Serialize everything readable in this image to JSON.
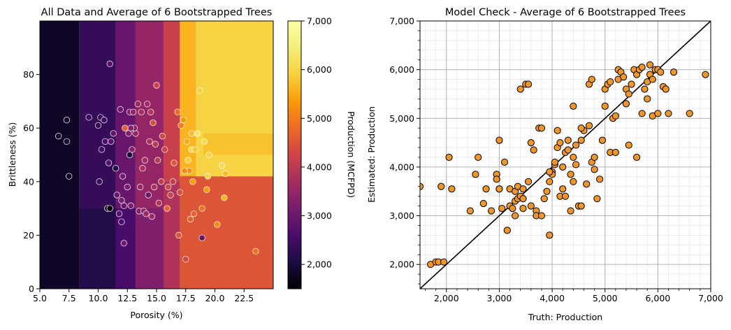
{
  "chart_data": [
    {
      "type": "heatmap",
      "title": "All Data and Average of 6 Bootstrapped Trees",
      "xlabel": "Porosity (%)",
      "ylabel": "Brittleness (%)",
      "xlim": [
        5.0,
        25.0
      ],
      "ylim": [
        0,
        100
      ],
      "xticks": [
        5.0,
        7.5,
        10.0,
        12.5,
        15.0,
        17.5,
        20.0,
        22.5
      ],
      "xtick_labels": [
        "5.0",
        "7.5",
        "10.0",
        "12.5",
        "15.0",
        "17.5",
        "20.0",
        "22.5"
      ],
      "yticks": [
        0,
        20,
        40,
        60,
        80
      ],
      "ytick_labels": [
        "0",
        "20",
        "40",
        "60",
        "80"
      ],
      "colorbar": {
        "label": "Production (MCFPD)",
        "colormap": "inferno",
        "range": [
          1500,
          7000
        ],
        "ticks": [
          2000,
          3000,
          4000,
          5000,
          6000,
          7000
        ],
        "tick_labels": [
          "2,000",
          "3,000",
          "4,000",
          "5,000",
          "6,000",
          "7,000"
        ]
      },
      "model_regions": [
        {
          "x": [
            5.0,
            8.4
          ],
          "y": [
            0,
            100
          ],
          "value": 1800
        },
        {
          "x": [
            8.4,
            11.5
          ],
          "y": [
            0,
            100
          ],
          "value": 2350
        },
        {
          "x": [
            8.4,
            11.5
          ],
          "y": [
            0,
            30
          ],
          "value": 2150
        },
        {
          "x": [
            11.5,
            13.2
          ],
          "y": [
            0,
            100
          ],
          "value": 2950
        },
        {
          "x": [
            11.5,
            13.2
          ],
          "y": [
            0,
            30
          ],
          "value": 2600
        },
        {
          "x": [
            13.2,
            15.6
          ],
          "y": [
            0,
            100
          ],
          "value": 3500
        },
        {
          "x": [
            13.2,
            15.6
          ],
          "y": [
            0,
            30
          ],
          "value": 3250
        },
        {
          "x": [
            15.6,
            17.0
          ],
          "y": [
            0,
            100
          ],
          "value": 4150
        },
        {
          "x": [
            15.6,
            17.0
          ],
          "y": [
            0,
            40
          ],
          "value": 3850
        },
        {
          "x": [
            17.0,
            18.4
          ],
          "y": [
            0,
            100
          ],
          "value": 5600
        },
        {
          "x": [
            17.0,
            25.0
          ],
          "y": [
            0,
            42
          ],
          "value": 4500
        },
        {
          "x": [
            18.4,
            25.0
          ],
          "y": [
            42,
            100
          ],
          "value": 5950
        },
        {
          "x": [
            19.0,
            25.0
          ],
          "y": [
            50,
            58
          ],
          "value": 5750
        }
      ],
      "scatter": {
        "x": [
          6.6,
          7.3,
          7.3,
          7.5,
          9.2,
          10.0,
          10.2,
          10.1,
          10.3,
          10.5,
          10.6,
          10.9,
          11.0,
          11.1,
          11.3,
          11.6,
          11.8,
          11.9,
          12.0,
          12.1,
          12.2,
          12.5,
          12.6,
          12.7,
          12.8,
          12.9,
          13.0,
          13.2,
          13.4,
          13.5,
          13.6,
          13.7,
          13.9,
          14.0,
          14.2,
          14.4,
          14.5,
          14.6,
          14.8,
          14.9,
          15.0,
          15.2,
          15.4,
          15.5,
          15.7,
          16.0,
          16.2,
          16.5,
          16.8,
          17.0,
          17.1,
          17.3,
          17.5,
          17.6,
          17.8,
          17.9,
          18.0,
          18.2,
          18.5,
          18.7,
          18.9,
          19.1,
          19.3,
          19.5,
          20.2,
          20.6,
          20.8,
          12.0,
          12.3,
          13.8,
          14.7,
          15.1,
          16.9,
          17.7,
          18.0,
          18.3,
          11.5,
          12.7,
          14.3,
          15.9,
          10.8,
          13.1,
          14.1,
          16.4,
          17.4,
          18.1,
          19.4,
          20.9,
          11.0,
          12.2,
          12.8,
          18.9,
          23.5
        ],
        "y": [
          57,
          55,
          63,
          42,
          64,
          61,
          64,
          40,
          52,
          63,
          55,
          47,
          84,
          55,
          58,
          35,
          28,
          67,
          33,
          42,
          31,
          38,
          58,
          66,
          31,
          52,
          66,
          58,
          69,
          29,
          38,
          66,
          29,
          48,
          69,
          55,
          66,
          27,
          38,
          54,
          76,
          32,
          40,
          57,
          52,
          38,
          35,
          47,
          66,
          36,
          61,
          63,
          11,
          55,
          44,
          26,
          58,
          28,
          58,
          74,
          30,
          55,
          37,
          50,
          24,
          46,
          34,
          25,
          60,
          45,
          62,
          48,
          20,
          48,
          52,
          52,
          45,
          50,
          35,
          30,
          30,
          60,
          28,
          40,
          44,
          40,
          42,
          43,
          30,
          17,
          60,
          19,
          14
        ],
        "value": [
          1800,
          1800,
          1800,
          1800,
          2400,
          2350,
          2300,
          2400,
          2500,
          2500,
          2600,
          2700,
          2800,
          2800,
          2900,
          3000,
          2800,
          3000,
          3100,
          3100,
          2900,
          3200,
          3300,
          3300,
          3200,
          3400,
          3500,
          3500,
          3600,
          3300,
          3500,
          3700,
          3400,
          3700,
          3700,
          3800,
          3900,
          3600,
          3800,
          4000,
          4200,
          3900,
          4100,
          4300,
          4200,
          4300,
          4200,
          4500,
          4800,
          4400,
          5000,
          5300,
          4300,
          5500,
          5200,
          4700,
          5700,
          4700,
          6300,
          5900,
          4900,
          6100,
          5300,
          6000,
          5200,
          6100,
          5600,
          2600,
          4600,
          3800,
          4400,
          4000,
          4500,
          5900,
          6000,
          5800,
          2100,
          2000,
          3000,
          4700,
          1700,
          3200,
          3600,
          4100,
          5200,
          5400,
          6000,
          5700,
          1500,
          3100,
          3300,
          3000,
          4900
        ]
      }
    },
    {
      "type": "scatter",
      "title": "Model Check - Average of 6 Bootstrapped Trees",
      "xlabel": "Truth: Production",
      "ylabel": "Estimated: Production",
      "xlim": [
        1500,
        7000
      ],
      "ylim": [
        1500,
        7000
      ],
      "xticks": [
        2000,
        3000,
        4000,
        5000,
        6000,
        7000
      ],
      "xtick_labels": [
        "2,000",
        "3,000",
        "4,000",
        "5,000",
        "6,000",
        "7,000"
      ],
      "yticks": [
        2000,
        3000,
        4000,
        5000,
        6000,
        7000
      ],
      "ytick_labels": [
        "2,000",
        "3,000",
        "4,000",
        "5,000",
        "6,000",
        "7,000"
      ],
      "grid": true,
      "reference_line": {
        "x": [
          1500,
          7000
        ],
        "y": [
          1500,
          7000
        ],
        "color": "#000000"
      },
      "marker_color": "#f0962a",
      "x": [
        1500,
        1700,
        1800,
        1850,
        1900,
        1950,
        2050,
        2100,
        2450,
        2550,
        2600,
        2700,
        2750,
        2850,
        2950,
        2950,
        3000,
        3000,
        3050,
        3100,
        3150,
        3150,
        3200,
        3200,
        3250,
        3300,
        3300,
        3300,
        3350,
        3350,
        3400,
        3400,
        3450,
        3450,
        3500,
        3550,
        3550,
        3600,
        3650,
        3700,
        3700,
        3750,
        3800,
        3800,
        3850,
        3900,
        3950,
        3950,
        4000,
        4000,
        4050,
        4050,
        4100,
        4100,
        4150,
        4150,
        4200,
        4200,
        4250,
        4250,
        4300,
        4300,
        4350,
        4350,
        4400,
        4400,
        4450,
        4450,
        4500,
        4550,
        4550,
        4600,
        4650,
        4700,
        4700,
        4750,
        4750,
        4800,
        4800,
        4850,
        4900,
        4950,
        5000,
        5000,
        5050,
        5100,
        5100,
        5150,
        5200,
        5200,
        5250,
        5250,
        5300,
        5350,
        5400,
        5400,
        5450,
        5500,
        5550,
        5600,
        5600,
        5650,
        5700,
        5700,
        5750,
        5800,
        5800,
        5850,
        5900,
        5900,
        5950,
        6000,
        6000,
        6050,
        6100,
        6150,
        6200,
        6300,
        6600,
        6900,
        3450,
        3950,
        4550,
        5850,
        3000,
        3600,
        4400,
        5450
      ],
      "y": [
        3600,
        2000,
        2050,
        2050,
        3600,
        2050,
        4200,
        3550,
        3100,
        3850,
        4200,
        3250,
        3550,
        3100,
        3850,
        3750,
        3550,
        4550,
        3150,
        4100,
        2700,
        2700,
        3550,
        3200,
        3150,
        3500,
        3000,
        3300,
        3600,
        3350,
        3400,
        5600,
        3550,
        3350,
        5700,
        3700,
        5700,
        3200,
        4350,
        3100,
        3000,
        4800,
        3000,
        4800,
        3350,
        3500,
        2600,
        3700,
        3900,
        3850,
        4050,
        4100,
        4750,
        4400,
        4500,
        3400,
        3550,
        4000,
        3400,
        4300,
        4350,
        4550,
        3100,
        3850,
        4200,
        5250,
        4450,
        4050,
        3200,
        4550,
        3200,
        4750,
        3650,
        5700,
        4850,
        4100,
        5800,
        4200,
        3950,
        3350,
        3750,
        4550,
        5600,
        5250,
        5700,
        4300,
        5750,
        5000,
        5050,
        4300,
        6000,
        5800,
        5950,
        5850,
        5600,
        5300,
        5500,
        5700,
        6000,
        4200,
        5900,
        6000,
        5100,
        6050,
        5600,
        5400,
        5750,
        5900,
        5050,
        5800,
        6000,
        6000,
        5100,
        5950,
        5650,
        5600,
        5100,
        5950,
        5100,
        5900,
        3150,
        3900,
        4800,
        6100,
        3550,
        4500,
        3700,
        4450
      ]
    }
  ]
}
